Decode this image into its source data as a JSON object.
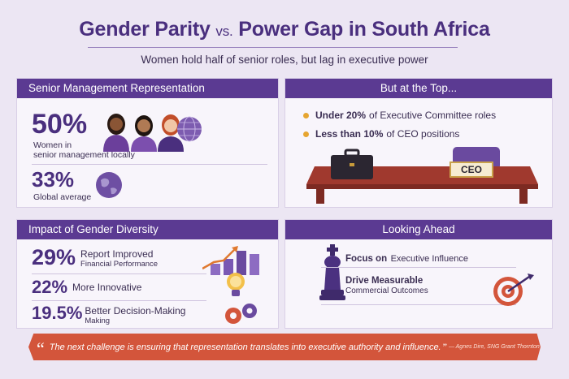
{
  "header": {
    "title_part1": "Gender Parity",
    "title_vs": "vs.",
    "title_part2": "Power Gap in South Africa",
    "subtitle": "Women hold half of senior roles, but lag in executive power"
  },
  "senior_management": {
    "heading": "Senior Management Representation",
    "local_value": "50%",
    "local_label_1": "Women in",
    "local_label_2": "senior management locally",
    "global_value": "33%",
    "global_label": "Global average"
  },
  "top": {
    "heading": "But at the Top...",
    "bullets": [
      {
        "bold": "Under 20%",
        "text": "of Executive Committee roles"
      },
      {
        "bold": "Less than 10%",
        "text": "of CEO positions"
      }
    ],
    "ceo_sign": "CEO"
  },
  "impact": {
    "heading": "Impact of Gender Diversity",
    "stats": [
      {
        "value": "29%",
        "main": "Report Improved",
        "sub": "Financial Performance"
      },
      {
        "value": "22%",
        "main": "More Innovative",
        "sub": ""
      },
      {
        "value": "19.5%",
        "main": "Better Decision-Making",
        "sub": "Making"
      }
    ]
  },
  "ahead": {
    "heading": "Looking Ahead",
    "items": [
      {
        "main": "Focus on",
        "main2": "Executive Influence"
      },
      {
        "main": "Drive Measurable",
        "sub": "Commercial Outcomes"
      }
    ]
  },
  "quote": {
    "text": "The next challenge is ensuring that representation translates into executive authority and influence.",
    "attribution": "— Agnes Dire, SNG Grant Thornton"
  },
  "colors": {
    "accent_purple": "#5b3a92",
    "background": "#ece6f3",
    "quote_red": "#d3553b",
    "bullet_gold": "#e6a531"
  }
}
